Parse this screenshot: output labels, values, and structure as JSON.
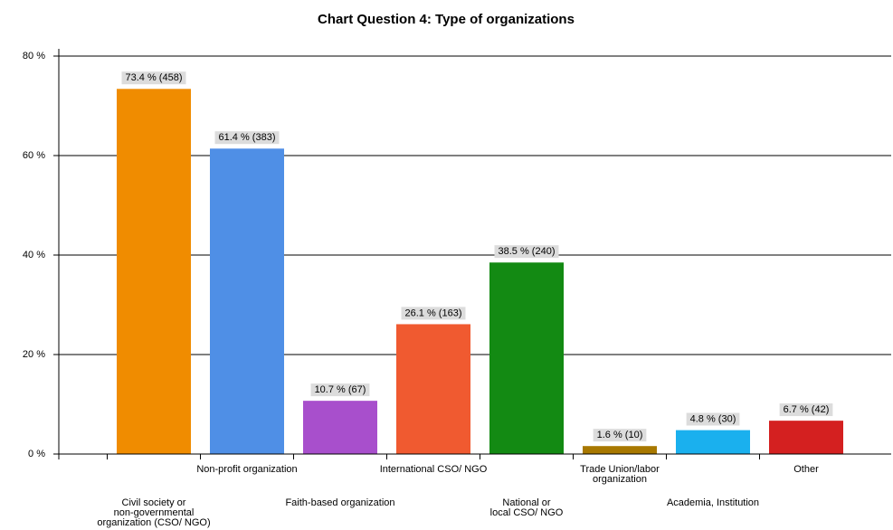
{
  "chart_data": {
    "type": "bar",
    "title": "Chart Question 4:   Type of organizations",
    "categories": [
      [
        "Civil society or",
        "non-governmental",
        "organization (CSO/ NGO)"
      ],
      [
        "Non-profit organization"
      ],
      [
        "Faith-based organization"
      ],
      [
        "International CSO/ NGO"
      ],
      [
        "National or",
        "local CSO/ NGO"
      ],
      [
        "Trade Union/labor",
        "organization"
      ],
      [
        "Academia, Institution"
      ],
      [
        "Other"
      ]
    ],
    "values": [
      73.4,
      61.4,
      10.7,
      26.1,
      38.5,
      1.6,
      4.8,
      6.7
    ],
    "value_labels": [
      "73.4 % (458)",
      "61.4 % (383)",
      "10.7 % (67)",
      "26.1 % (163)",
      "38.5 % (240)",
      "1.6 % (10)",
      "4.8 % (30)",
      "6.7 % (42)"
    ],
    "colors": [
      "#f08c00",
      "#4f8fe6",
      "#a84fcc",
      "#f05a30",
      "#138a13",
      "#a87800",
      "#1ab0ee",
      "#d42020"
    ],
    "ylim": [
      0,
      80
    ],
    "yticks": [
      {
        "value": 0,
        "label": "0 %"
      },
      {
        "value": 20,
        "label": "20 %"
      },
      {
        "value": 40,
        "label": "40 %"
      },
      {
        "value": 60,
        "label": "60 %"
      },
      {
        "value": 80,
        "label": "80 %"
      }
    ],
    "grid": true
  }
}
